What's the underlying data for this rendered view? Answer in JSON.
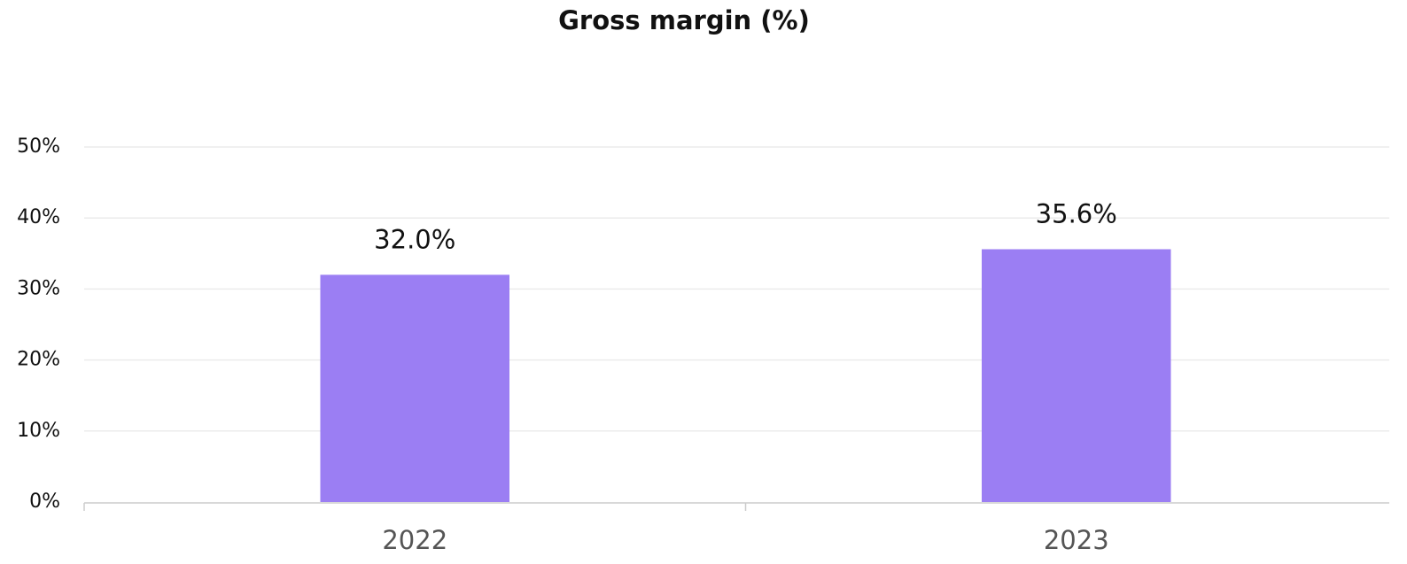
{
  "chart_data": {
    "type": "bar",
    "title": "Gross margin (%)",
    "categories": [
      "2022",
      "2023"
    ],
    "values": [
      32.0,
      35.6
    ],
    "value_labels": [
      "32.0%",
      "35.6%"
    ],
    "color": "#9b7ef3",
    "ylim": [
      0,
      50
    ],
    "yticks": [
      {
        "value": 0,
        "label": "0%"
      },
      {
        "value": 10,
        "label": "10%"
      },
      {
        "value": 20,
        "label": "20%"
      },
      {
        "value": 30,
        "label": "30%"
      },
      {
        "value": 40,
        "label": "40%"
      },
      {
        "value": 50,
        "label": "50%"
      }
    ],
    "grid": true
  }
}
